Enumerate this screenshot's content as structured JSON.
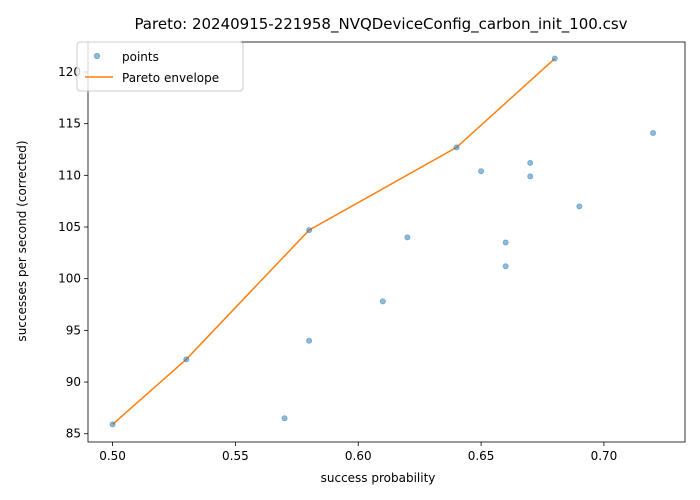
{
  "chart_data": {
    "type": "scatter",
    "title": "Pareto: 20240915-221958_NVQDeviceConfig_carbon_init_100.csv",
    "xlabel": "success probability",
    "ylabel": "successes per second (corrected)",
    "xlim": [
      0.49,
      0.733
    ],
    "ylim": [
      84.2,
      122.9
    ],
    "xticks": [
      0.5,
      0.55,
      0.6,
      0.65,
      0.7
    ],
    "xtick_labels": [
      "0.50",
      "0.55",
      "0.60",
      "0.65",
      "0.70"
    ],
    "yticks": [
      85,
      90,
      95,
      100,
      105,
      110,
      115,
      120
    ],
    "ytick_labels": [
      "85",
      "90",
      "95",
      "100",
      "105",
      "110",
      "115",
      "120"
    ],
    "grid": false,
    "legend_position": "top-left",
    "legend": [
      "points",
      "Pareto envelope"
    ],
    "colors": {
      "points": "#1f77b4",
      "envelope": "#ff7f0e"
    },
    "series": [
      {
        "name": "points",
        "kind": "scatter",
        "x": [
          0.5,
          0.53,
          0.57,
          0.58,
          0.58,
          0.61,
          0.62,
          0.64,
          0.65,
          0.66,
          0.66,
          0.67,
          0.67,
          0.68,
          0.69,
          0.72
        ],
        "y": [
          85.9,
          92.2,
          86.5,
          94.0,
          104.7,
          97.8,
          104.0,
          112.7,
          110.4,
          103.5,
          101.2,
          111.2,
          109.9,
          121.3,
          107.0,
          114.1
        ]
      },
      {
        "name": "Pareto envelope",
        "kind": "line",
        "x": [
          0.5,
          0.53,
          0.58,
          0.64,
          0.68
        ],
        "y": [
          85.9,
          92.2,
          104.7,
          112.7,
          121.3
        ]
      }
    ]
  }
}
